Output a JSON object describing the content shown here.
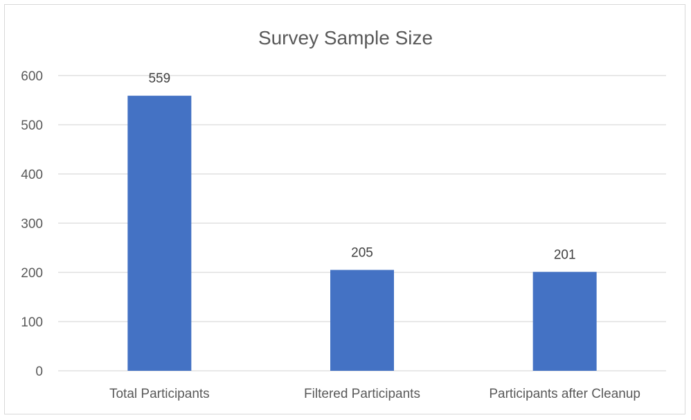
{
  "chart_data": {
    "type": "bar",
    "title": "Survey Sample Size",
    "xlabel": "",
    "ylabel": "",
    "categories": [
      "Total Participants",
      "Filtered Participants",
      "Participants after Cleanup"
    ],
    "values": [
      559,
      205,
      201
    ],
    "data_labels": [
      "559",
      "205",
      "201"
    ],
    "ylim": [
      0,
      600
    ],
    "yticks": [
      0,
      100,
      200,
      300,
      400,
      500,
      600
    ],
    "ytick_labels": [
      "0",
      "100",
      "200",
      "300",
      "400",
      "500",
      "600"
    ],
    "grid": true,
    "legend": "none",
    "bar_color": "#4472c4"
  }
}
